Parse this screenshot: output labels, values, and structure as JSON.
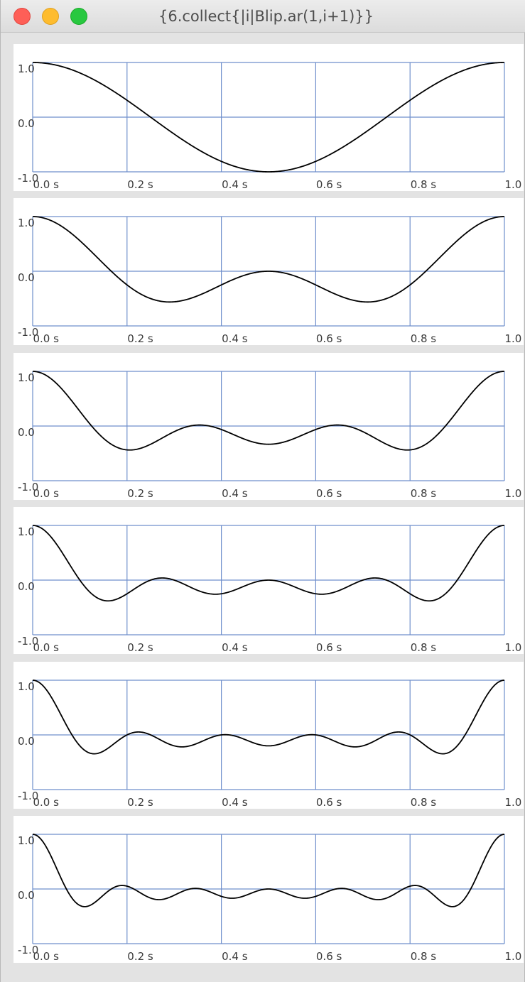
{
  "window": {
    "title": "{6.collect{|i|Blip.ar(1,i+1)}}"
  },
  "style": {
    "grid_color": "#6f8fcc",
    "line_color": "#000000",
    "panel_background": "#ffffff",
    "window_background": "#e3e3e3"
  },
  "chart_data": [
    {
      "type": "line",
      "x_tick_labels": [
        "0.0 s",
        "0.2 s",
        "0.4 s",
        "0.6 s",
        "0.8 s",
        "1.0"
      ],
      "y_tick_labels": [
        "1.0",
        "0.0",
        "-1.0"
      ],
      "xlim": [
        0,
        1
      ],
      "ylim": [
        -1,
        1
      ],
      "grid": true,
      "series": [
        {
          "numharm": 1
        }
      ]
    },
    {
      "type": "line",
      "x_tick_labels": [
        "0.0 s",
        "0.2 s",
        "0.4 s",
        "0.6 s",
        "0.8 s",
        "1.0"
      ],
      "y_tick_labels": [
        "1.0",
        "0.0",
        "-1.0"
      ],
      "xlim": [
        0,
        1
      ],
      "ylim": [
        -1,
        1
      ],
      "grid": true,
      "series": [
        {
          "numharm": 2
        }
      ]
    },
    {
      "type": "line",
      "x_tick_labels": [
        "0.0 s",
        "0.2 s",
        "0.4 s",
        "0.6 s",
        "0.8 s",
        "1.0"
      ],
      "y_tick_labels": [
        "1.0",
        "0.0",
        "-1.0"
      ],
      "xlim": [
        0,
        1
      ],
      "ylim": [
        -1,
        1
      ],
      "grid": true,
      "series": [
        {
          "numharm": 3
        }
      ]
    },
    {
      "type": "line",
      "x_tick_labels": [
        "0.0 s",
        "0.2 s",
        "0.4 s",
        "0.6 s",
        "0.8 s",
        "1.0"
      ],
      "y_tick_labels": [
        "1.0",
        "0.0",
        "-1.0"
      ],
      "xlim": [
        0,
        1
      ],
      "ylim": [
        -1,
        1
      ],
      "grid": true,
      "series": [
        {
          "numharm": 4
        }
      ]
    },
    {
      "type": "line",
      "x_tick_labels": [
        "0.0 s",
        "0.2 s",
        "0.4 s",
        "0.6 s",
        "0.8 s",
        "1.0"
      ],
      "y_tick_labels": [
        "1.0",
        "0.0",
        "-1.0"
      ],
      "xlim": [
        0,
        1
      ],
      "ylim": [
        -1,
        1
      ],
      "grid": true,
      "series": [
        {
          "numharm": 5
        }
      ]
    },
    {
      "type": "line",
      "x_tick_labels": [
        "0.0 s",
        "0.2 s",
        "0.4 s",
        "0.6 s",
        "0.8 s",
        "1.0"
      ],
      "y_tick_labels": [
        "1.0",
        "0.0",
        "-1.0"
      ],
      "xlim": [
        0,
        1
      ],
      "ylim": [
        -1,
        1
      ],
      "grid": true,
      "series": [
        {
          "numharm": 6
        }
      ]
    }
  ]
}
